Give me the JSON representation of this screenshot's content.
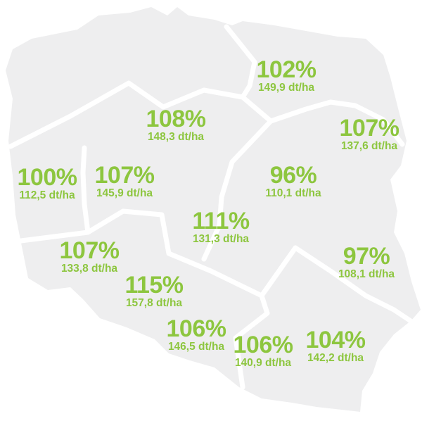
{
  "map": {
    "fill_color": "#eeeeef",
    "border_color": "#ffffff",
    "label_color": "#8dc63f"
  },
  "regions": [
    {
      "percent": "102%",
      "yield": "149,9 dt/ha"
    },
    {
      "percent": "108%",
      "yield": "148,3 dt/ha"
    },
    {
      "percent": "107%",
      "yield": "137,6 dt/ha"
    },
    {
      "percent": "100%",
      "yield": "112,5 dt/ha"
    },
    {
      "percent": "107%",
      "yield": "145,9 dt/ha"
    },
    {
      "percent": "96%",
      "yield": "110,1 dt/ha"
    },
    {
      "percent": "111%",
      "yield": "131,3 dt/ha"
    },
    {
      "percent": "107%",
      "yield": "133,8 dt/ha"
    },
    {
      "percent": "97%",
      "yield": "108,1 dt/ha"
    },
    {
      "percent": "115%",
      "yield": "157,8 dt/ha"
    },
    {
      "percent": "106%",
      "yield": "146,5 dt/ha"
    },
    {
      "percent": "106%",
      "yield": "140,9 dt/ha"
    },
    {
      "percent": "104%",
      "yield": "142,2 dt/ha"
    }
  ]
}
